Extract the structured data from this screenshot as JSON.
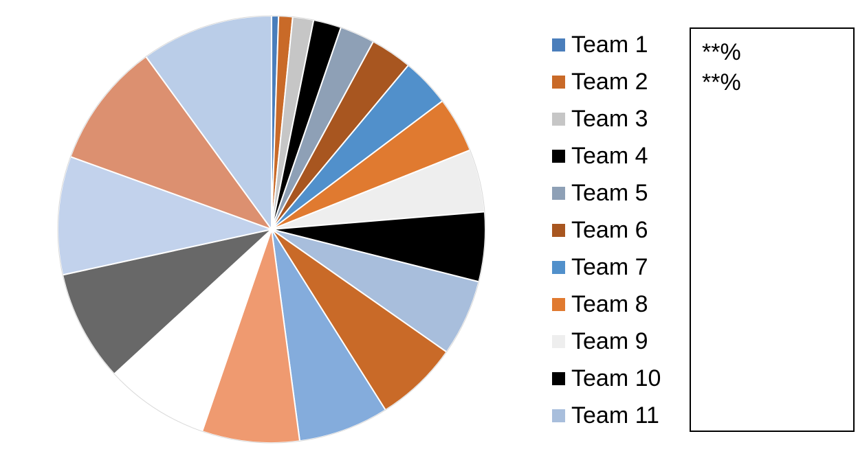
{
  "chart_data": {
    "type": "pie",
    "title": "",
    "series": [
      {
        "name": "Team 1",
        "value": 0.5,
        "color": "#4A7EBB"
      },
      {
        "name": "Team 2",
        "value": 1.0,
        "color": "#C96A28"
      },
      {
        "name": "Team 3",
        "value": 1.5,
        "color": "#C6C6C6"
      },
      {
        "name": "Team 4",
        "value": 2.0,
        "color": "#000000"
      },
      {
        "name": "Team 5",
        "value": 2.5,
        "color": "#8EA0B6"
      },
      {
        "name": "Team 6",
        "value": 3.0,
        "color": "#A85620"
      },
      {
        "name": "Team 7",
        "value": 3.5,
        "color": "#5190CB"
      },
      {
        "name": "Team 8",
        "value": 4.0,
        "color": "#E07A30"
      },
      {
        "name": "Team 9",
        "value": 4.5,
        "color": "#EEEEEE"
      },
      {
        "name": "Team 10",
        "value": 5.0,
        "color": "#000000"
      },
      {
        "name": "Team 11",
        "value": 5.5,
        "color": "#A8BEDC"
      },
      {
        "name": "",
        "value": 6.0,
        "color": "#C96A28"
      },
      {
        "name": "",
        "value": 6.5,
        "color": "#84ACDC"
      },
      {
        "name": "",
        "value": 7.0,
        "color": "#EF9A70"
      },
      {
        "name": "",
        "value": 7.5,
        "color": "#FFFFFF"
      },
      {
        "name": "",
        "value": 8.0,
        "color": "#686868"
      },
      {
        "name": "",
        "value": 8.5,
        "color": "#C2D2EC"
      },
      {
        "name": "",
        "value": 9.0,
        "color": "#DC9070"
      },
      {
        "name": "",
        "value": 9.5,
        "color": "#BACDE8"
      }
    ],
    "legend_position": "right",
    "start_angle": "top",
    "direction": "clockwise"
  },
  "legend": {
    "items": [
      {
        "label": "Team 1",
        "color": "#4A7EBB"
      },
      {
        "label": "Team 2",
        "color": "#C96A28"
      },
      {
        "label": "Team 3",
        "color": "#C6C6C6"
      },
      {
        "label": "Team 4",
        "color": "#000000"
      },
      {
        "label": "Team 5",
        "color": "#8EA0B6"
      },
      {
        "label": "Team 6",
        "color": "#A85620"
      },
      {
        "label": "Team 7",
        "color": "#5190CB"
      },
      {
        "label": "Team 8",
        "color": "#E07A30"
      },
      {
        "label": "Team 9",
        "color": "#EEEEEE"
      },
      {
        "label": "Team 10",
        "color": "#000000"
      },
      {
        "label": "Team 11",
        "color": "#A8BEDC"
      }
    ]
  },
  "notes": {
    "lines": [
      "**%",
      "**%"
    ]
  }
}
